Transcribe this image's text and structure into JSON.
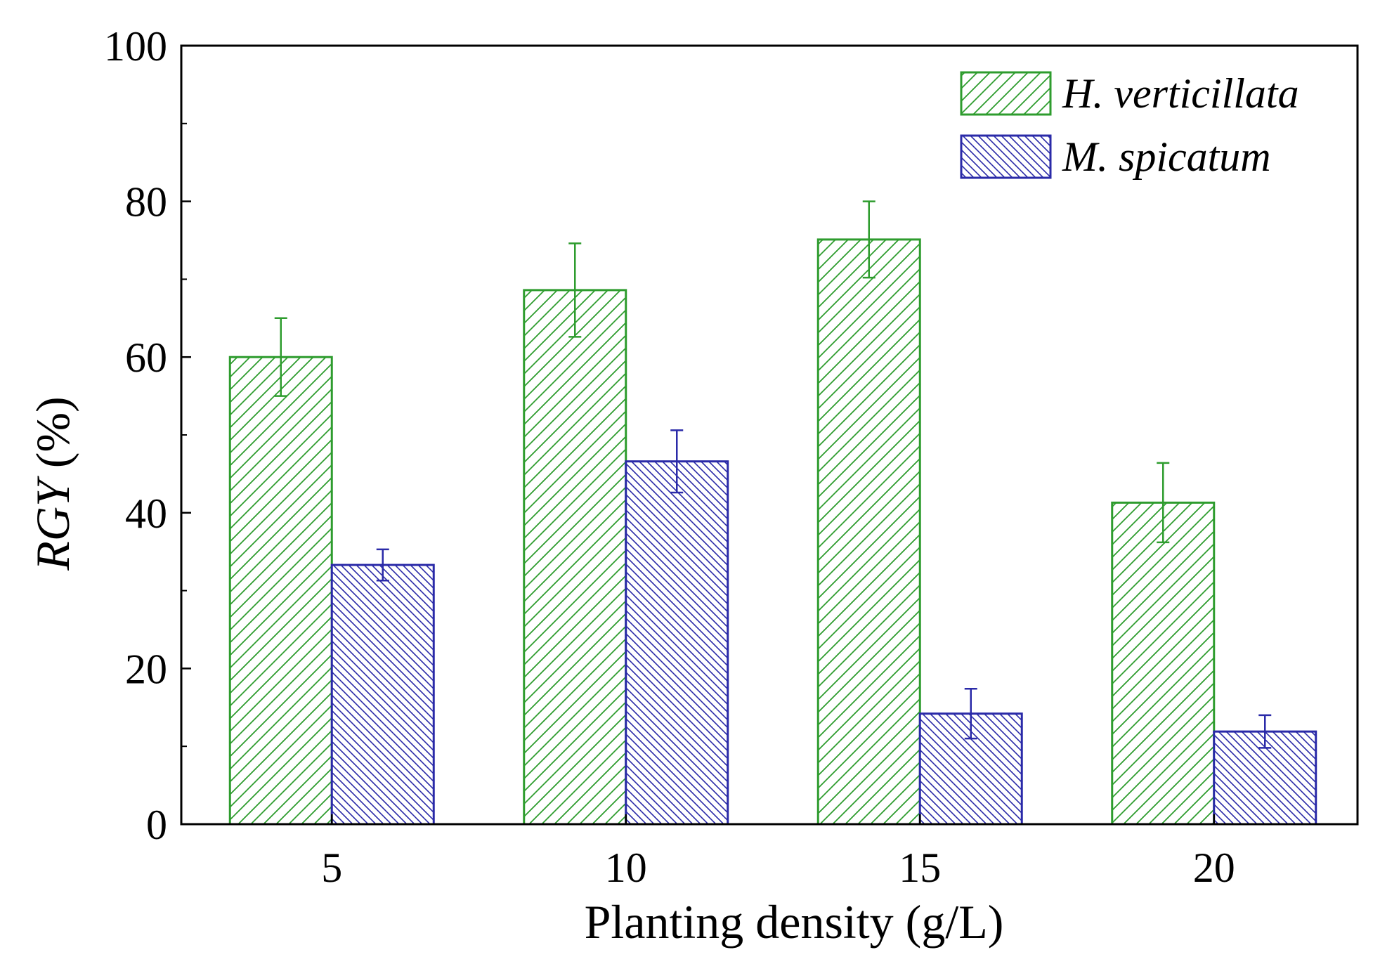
{
  "chart_data": {
    "type": "bar",
    "title": "",
    "xlabel": "Planting density (g/L)",
    "ylabel_italic": "RGY",
    "ylabel_unit": " (%)",
    "categories": [
      "5",
      "10",
      "15",
      "20"
    ],
    "ylim": [
      0,
      100
    ],
    "yticks": [
      0,
      20,
      40,
      60,
      80,
      100
    ],
    "ytick_labels": [
      "0",
      "20",
      "40",
      "60",
      "80",
      "100"
    ],
    "grid": false,
    "legend_position": "top-right",
    "series": [
      {
        "name": "H. verticillata",
        "color": "#2e9c2e",
        "hatch": "forward-diagonal",
        "values": [
          60.0,
          68.6,
          75.1,
          41.3
        ],
        "errors": [
          5.0,
          6.0,
          4.9,
          5.1
        ]
      },
      {
        "name": "M. spicatum",
        "color": "#2a2aa8",
        "hatch": "back-diagonal",
        "values": [
          33.3,
          46.6,
          14.2,
          11.9
        ],
        "errors": [
          2.0,
          4.0,
          3.2,
          2.1
        ]
      }
    ]
  }
}
